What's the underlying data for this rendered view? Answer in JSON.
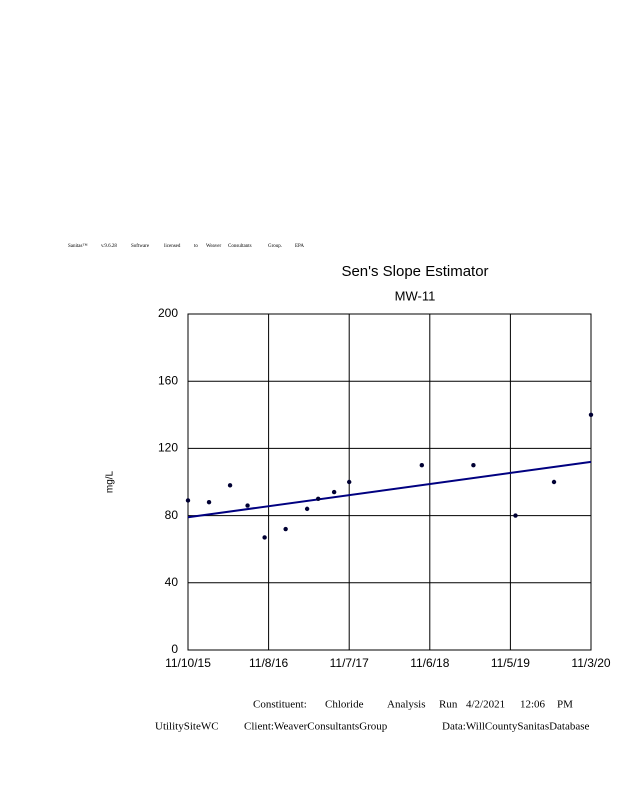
{
  "header": {
    "license": [
      "Sanitas™",
      "v.9.6.28",
      "Software",
      "licensed",
      "to",
      "Weaver",
      "Consultants",
      "Group.",
      "EPA"
    ]
  },
  "chart_data": {
    "type": "scatter",
    "title": "Sen's Slope Estimator",
    "subtitle": "MW-11",
    "y_label": "mg/L",
    "x": [
      "2015-11-10",
      "2016-02-13",
      "2016-05-18",
      "2016-08-05",
      "2016-10-21",
      "2017-01-24",
      "2017-05-01",
      "2017-06-20",
      "2017-08-31",
      "2017-11-07",
      "2018-10-01",
      "2019-05-22",
      "2019-11-28",
      "2020-05-20",
      "2020-11-03"
    ],
    "values": [
      89,
      88,
      98,
      86,
      67,
      72,
      84,
      90,
      94,
      100,
      110,
      110,
      80,
      100,
      140
    ],
    "color": "#000033",
    "trend": {
      "x": [
        "2015-11-10",
        "2020-11-03"
      ],
      "values": [
        79,
        112
      ],
      "color": "#000080"
    },
    "xlim": [
      "2015-11-10",
      "2020-11-03"
    ],
    "xticks": [
      {
        "value": "2015-11-10",
        "label": "11/10/15"
      },
      {
        "value": "2016-11-08",
        "label": "11/8/16"
      },
      {
        "value": "2017-11-07",
        "label": "11/7/17"
      },
      {
        "value": "2018-11-06",
        "label": "11/6/18"
      },
      {
        "value": "2019-11-05",
        "label": "11/5/19"
      },
      {
        "value": "2020-11-03",
        "label": "11/3/20"
      }
    ],
    "ylim": [
      0,
      200
    ],
    "yticks": [
      0,
      40,
      80,
      120,
      160,
      200
    ],
    "grid": true
  },
  "footer": {
    "line1": [
      "Constituent:",
      "Chloride",
      "Analysis",
      "Run",
      "4/2/2021",
      "12:06",
      "PM"
    ],
    "line2": [
      "UtilitySiteWC",
      "Client:WeaverConsultantsGroup",
      "Data:WillCountySanitasDatabase"
    ]
  }
}
